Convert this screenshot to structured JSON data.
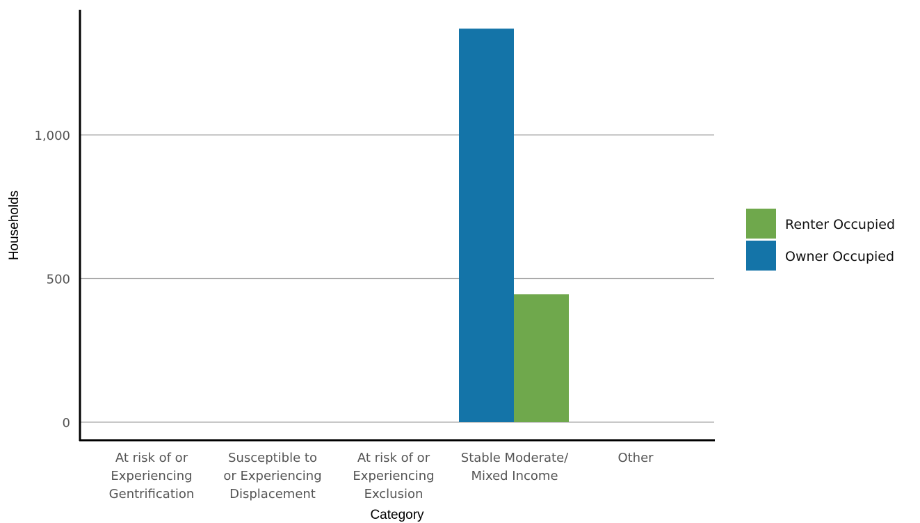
{
  "chart_data": {
    "type": "bar",
    "xlabel": "Category",
    "ylabel": "Households",
    "categories": [
      [
        "At risk of or",
        "Experiencing",
        "Gentrification"
      ],
      [
        "Susceptible to",
        "or Experiencing",
        "Displacement"
      ],
      [
        "At risk of or",
        "Experiencing",
        "Exclusion"
      ],
      [
        "Stable Moderate/",
        "Mixed Income"
      ],
      [
        "Other"
      ]
    ],
    "series": [
      {
        "name": "Owner Occupied",
        "color": "#1474a8",
        "values": [
          0,
          0,
          0,
          1370,
          0
        ]
      },
      {
        "name": "Renter Occupied",
        "color": "#6fa84c",
        "values": [
          0,
          0,
          0,
          445,
          0
        ]
      }
    ],
    "yticks": [
      0,
      500,
      1000
    ],
    "ytick_labels": [
      "0",
      "500",
      "1,000"
    ],
    "ylim": [
      -70,
      1450
    ],
    "grid": true,
    "legend": {
      "position": "right",
      "items": [
        {
          "label": "Renter Occupied",
          "color": "#6fa84c"
        },
        {
          "label": "Owner Occupied",
          "color": "#1474a8"
        }
      ]
    }
  }
}
